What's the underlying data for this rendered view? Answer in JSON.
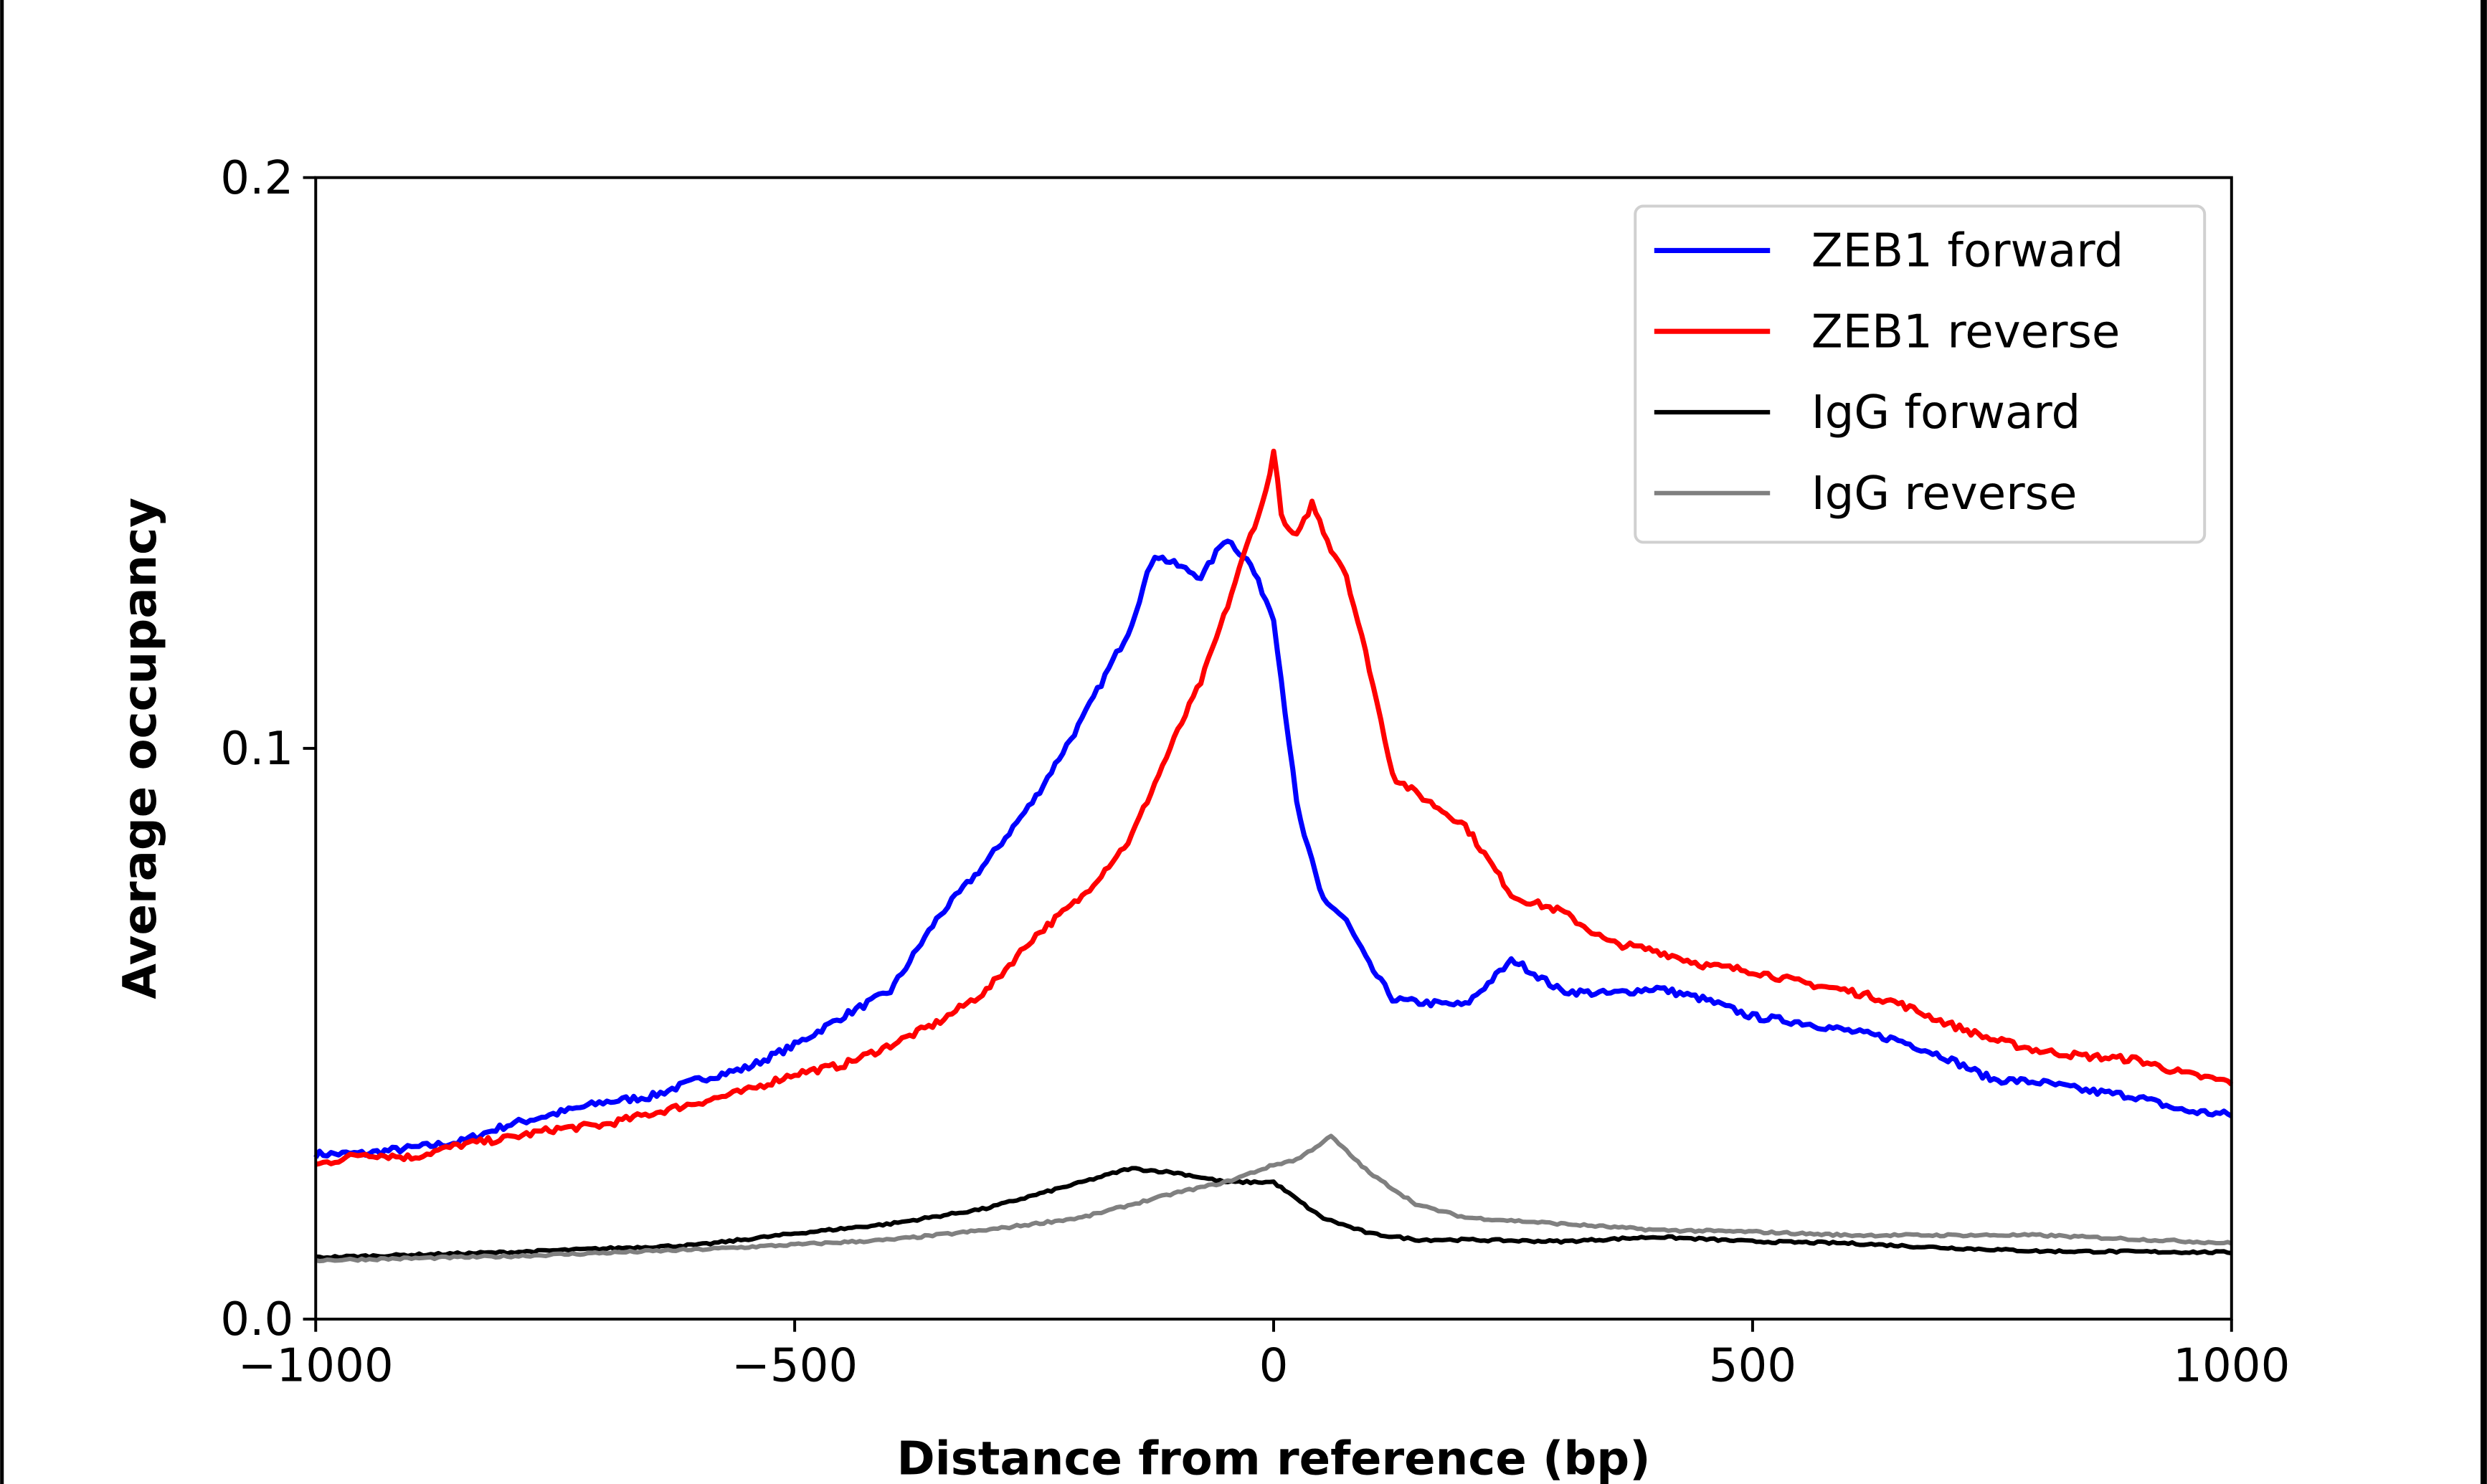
{
  "chart_data": {
    "type": "line",
    "title": "",
    "xlabel": "Distance from reference (bp)",
    "ylabel": "Average occupancy",
    "xlim": [
      -1000,
      1000
    ],
    "ylim": [
      0,
      0.2
    ],
    "xticks": [
      -1000,
      -500,
      0,
      500,
      1000
    ],
    "xtick_labels": [
      "−1000",
      "−500",
      "0",
      "500",
      "1000"
    ],
    "yticks": [
      0,
      0.1,
      0.2
    ],
    "ytick_labels": [
      "0.0",
      "0.1",
      "0.2"
    ],
    "grid": false,
    "legend_position": "top-right",
    "series": [
      {
        "name": "ZEB1 forward",
        "color": "#0000ff",
        "x": [
          -1000,
          -950,
          -900,
          -850,
          -800,
          -750,
          -700,
          -650,
          -600,
          -550,
          -500,
          -450,
          -400,
          -350,
          -300,
          -250,
          -200,
          -150,
          -125,
          -100,
          -75,
          -50,
          -25,
          0,
          25,
          50,
          75,
          100,
          125,
          150,
          200,
          250,
          300,
          350,
          400,
          450,
          500,
          550,
          600,
          650,
          700,
          750,
          800,
          850,
          900,
          950,
          1000
        ],
        "y": [
          0.0289,
          0.029,
          0.03,
          0.031,
          0.034,
          0.036,
          0.038,
          0.039,
          0.042,
          0.044,
          0.048,
          0.053,
          0.0575,
          0.0705,
          0.08,
          0.091,
          0.105,
          0.121,
          0.134,
          0.132,
          0.13,
          0.137,
          0.1325,
          0.123,
          0.089,
          0.074,
          0.07,
          0.062,
          0.056,
          0.0555,
          0.055,
          0.063,
          0.0575,
          0.057,
          0.058,
          0.056,
          0.053,
          0.052,
          0.0505,
          0.049,
          0.046,
          0.042,
          0.0415,
          0.04,
          0.039,
          0.0365,
          0.0358
        ]
      },
      {
        "name": "ZEB1 reverse",
        "color": "#ff0000",
        "x": [
          -1000,
          -950,
          -900,
          -850,
          -800,
          -750,
          -700,
          -650,
          -600,
          -550,
          -500,
          -450,
          -400,
          -350,
          -300,
          -250,
          -200,
          -150,
          -100,
          -75,
          -50,
          -25,
          -10,
          0,
          10,
          25,
          40,
          60,
          75,
          100,
          125,
          150,
          200,
          250,
          300,
          350,
          400,
          450,
          500,
          550,
          600,
          650,
          700,
          750,
          800,
          850,
          900,
          950,
          1000
        ],
        "y": [
          0.027,
          0.029,
          0.0283,
          0.0305,
          0.0317,
          0.0333,
          0.034,
          0.036,
          0.038,
          0.04,
          0.043,
          0.0445,
          0.048,
          0.052,
          0.0575,
          0.067,
          0.074,
          0.084,
          0.103,
          0.112,
          0.124,
          0.137,
          0.1435,
          0.152,
          0.139,
          0.137,
          0.143,
          0.135,
          0.131,
          0.114,
          0.095,
          0.092,
          0.0865,
          0.074,
          0.0715,
          0.066,
          0.0645,
          0.062,
          0.061,
          0.059,
          0.0575,
          0.0555,
          0.052,
          0.049,
          0.047,
          0.046,
          0.0455,
          0.043,
          0.0415
        ]
      },
      {
        "name": "IgG forward",
        "color": "#000000",
        "x": [
          -1000,
          -800,
          -600,
          -500,
          -400,
          -300,
          -200,
          -150,
          -100,
          -50,
          0,
          50,
          100,
          150,
          200,
          300,
          400,
          500,
          600,
          700,
          800,
          1000
        ],
        "y": [
          0.0108,
          0.0117,
          0.013,
          0.015,
          0.0167,
          0.0194,
          0.024,
          0.0264,
          0.0256,
          0.024,
          0.024,
          0.0178,
          0.015,
          0.0139,
          0.0139,
          0.0136,
          0.0144,
          0.0136,
          0.0133,
          0.0125,
          0.0119,
          0.0117
        ]
      },
      {
        "name": "IgG reverse",
        "color": "#808080",
        "x": [
          -1000,
          -800,
          -600,
          -400,
          -300,
          -200,
          -100,
          -50,
          0,
          25,
          60,
          100,
          150,
          200,
          300,
          400,
          500,
          600,
          800,
          1000
        ],
        "y": [
          0.0103,
          0.011,
          0.0122,
          0.0139,
          0.0156,
          0.0178,
          0.0222,
          0.024,
          0.027,
          0.028,
          0.032,
          0.0256,
          0.02,
          0.0178,
          0.0167,
          0.0156,
          0.0153,
          0.0147,
          0.0147,
          0.0133
        ]
      }
    ]
  }
}
